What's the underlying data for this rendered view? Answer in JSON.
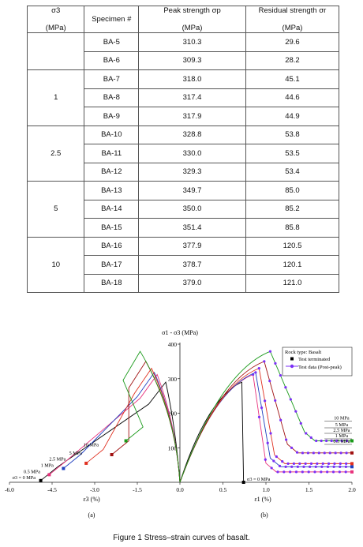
{
  "table": {
    "headers": {
      "sigma3": "σ3",
      "sigma3_unit": "(MPa)",
      "specimen": "Specimen #",
      "peak": "Peak strength σp",
      "peak_unit": "(MPa)",
      "residual": "Residual strength σr",
      "residual_unit": "(MPa)"
    },
    "groups": [
      {
        "sigma3": "",
        "rows": [
          [
            "BA-5",
            "310.3",
            "29.6"
          ],
          [
            "BA-6",
            "309.3",
            "28.2"
          ]
        ]
      },
      {
        "sigma3": "1",
        "rows": [
          [
            "BA-7",
            "318.0",
            "45.1"
          ],
          [
            "BA-8",
            "317.4",
            "44.6"
          ],
          [
            "BA-9",
            "317.9",
            "44.9"
          ]
        ]
      },
      {
        "sigma3": "2.5",
        "rows": [
          [
            "BA-10",
            "328.8",
            "53.8"
          ],
          [
            "BA-11",
            "330.0",
            "53.5"
          ],
          [
            "BA-12",
            "329.3",
            "53.4"
          ]
        ]
      },
      {
        "sigma3": "5",
        "rows": [
          [
            "BA-13",
            "349.7",
            "85.0"
          ],
          [
            "BA-14",
            "350.0",
            "85.2"
          ],
          [
            "BA-15",
            "351.4",
            "85.8"
          ]
        ]
      },
      {
        "sigma3": "10",
        "rows": [
          [
            "BA-16",
            "377.9",
            "120.5"
          ],
          [
            "BA-17",
            "378.7",
            "120.1"
          ],
          [
            "BA-18",
            "379.0",
            "121.0"
          ]
        ]
      }
    ]
  },
  "chart_data": {
    "type": "line",
    "title": "",
    "ylabel": "σ1 - σ3 (MPa)",
    "ylim": [
      0,
      400
    ],
    "yticks": [
      "100",
      "200",
      "300",
      "400"
    ],
    "xlabel_left": "ε3 (%)",
    "xlabel_right": "ε1 (%)",
    "xlim": [
      -6.0,
      2.0
    ],
    "xticks": [
      "-6.0",
      "-4.5",
      "-3.0",
      "-1.5",
      "0.0",
      "0.5",
      "1.0",
      "1.5",
      "2.0"
    ],
    "panel_labels": [
      "(a)",
      "(b)"
    ],
    "left_labels": [
      "σ3 = 0 MPa",
      "0.5 MPa",
      "1 MPa",
      "2.5 MPa",
      "5 MPa",
      "10 MPa"
    ],
    "right_labels": [
      "10 MPa",
      "5 MPa",
      "2.5 MPa",
      "1 MPa",
      "0.5 MPa"
    ],
    "right_bottom_label": "σ3 = 0 MPa",
    "legend": {
      "title": "Rock type: Basalt",
      "items": [
        "Test terminated",
        "Test data (Post-peak)"
      ]
    },
    "series": [
      {
        "name": "0 MPa",
        "color": "#000000",
        "peak": 290,
        "residual": 0
      },
      {
        "name": "0.5 MPa",
        "color": "#e8327c",
        "peak": 312,
        "residual": 30
      },
      {
        "name": "1 MPa",
        "color": "#1f3fbf",
        "peak": 318,
        "residual": 45
      },
      {
        "name": "2.5 MPa",
        "color": "#e03020",
        "peak": 330,
        "residual": 54
      },
      {
        "name": "5 MPa",
        "color": "#a01010",
        "peak": 350,
        "residual": 85
      },
      {
        "name": "10 MPa",
        "color": "#1a9a1a",
        "peak": 379,
        "residual": 120
      }
    ]
  },
  "caption": "Figure 1 Stress–strain curves of basalt."
}
